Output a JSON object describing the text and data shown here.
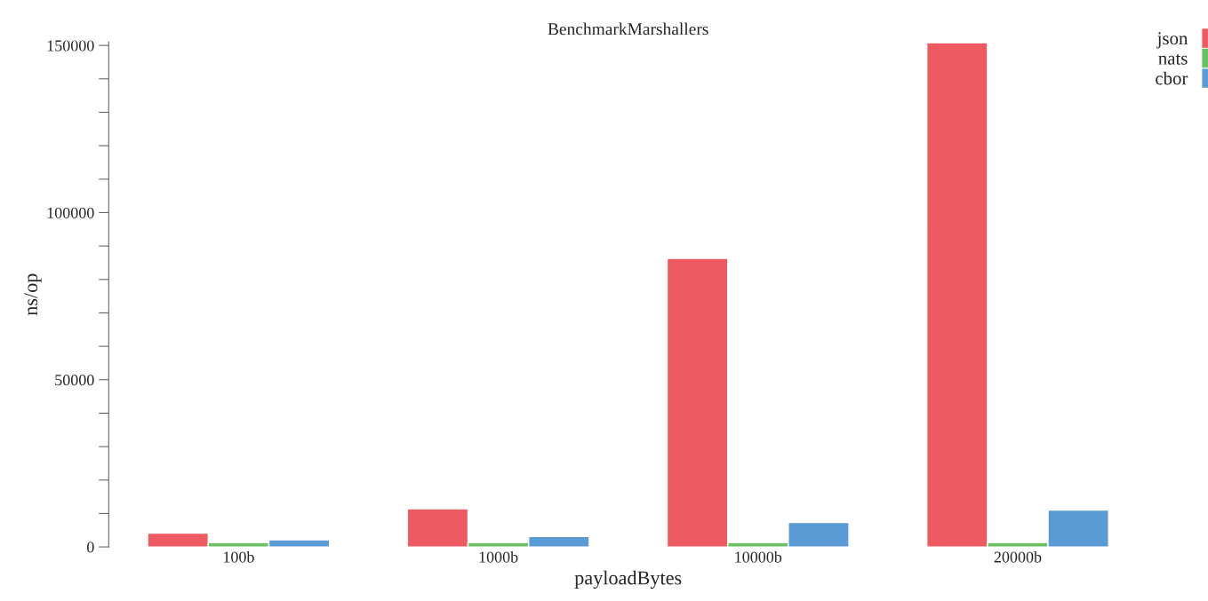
{
  "chart_data": {
    "type": "bar",
    "title": "BenchmarkMarshallers",
    "xlabel": "payloadBytes",
    "ylabel": "ns/op",
    "categories": [
      "100b",
      "1000b",
      "10000b",
      "20000b"
    ],
    "series": [
      {
        "name": "json",
        "color": "#ef5a62",
        "values": [
          4100,
          11400,
          86300,
          150800
        ]
      },
      {
        "name": "nats",
        "color": "#6cbf63",
        "values": [
          1300,
          1300,
          1300,
          1300
        ]
      },
      {
        "name": "cbor",
        "color": "#5a9bd5",
        "values": [
          2100,
          3100,
          7300,
          11000
        ]
      }
    ],
    "ylim": [
      0,
      151000
    ],
    "yticks": [
      0,
      {
        "value": 10000,
        "label": null
      },
      {
        "value": 20000,
        "label": null
      },
      {
        "value": 30000,
        "label": null
      },
      {
        "value": 40000,
        "label": null
      },
      50000,
      {
        "value": 60000,
        "label": null
      },
      {
        "value": 70000,
        "label": null
      },
      {
        "value": 80000,
        "label": null
      },
      {
        "value": 90000,
        "label": null
      },
      100000,
      {
        "value": 110000,
        "label": null
      },
      {
        "value": 120000,
        "label": null
      },
      {
        "value": 130000,
        "label": null
      },
      {
        "value": 140000,
        "label": null
      },
      150000
    ],
    "grid": false,
    "legend": "top right"
  }
}
